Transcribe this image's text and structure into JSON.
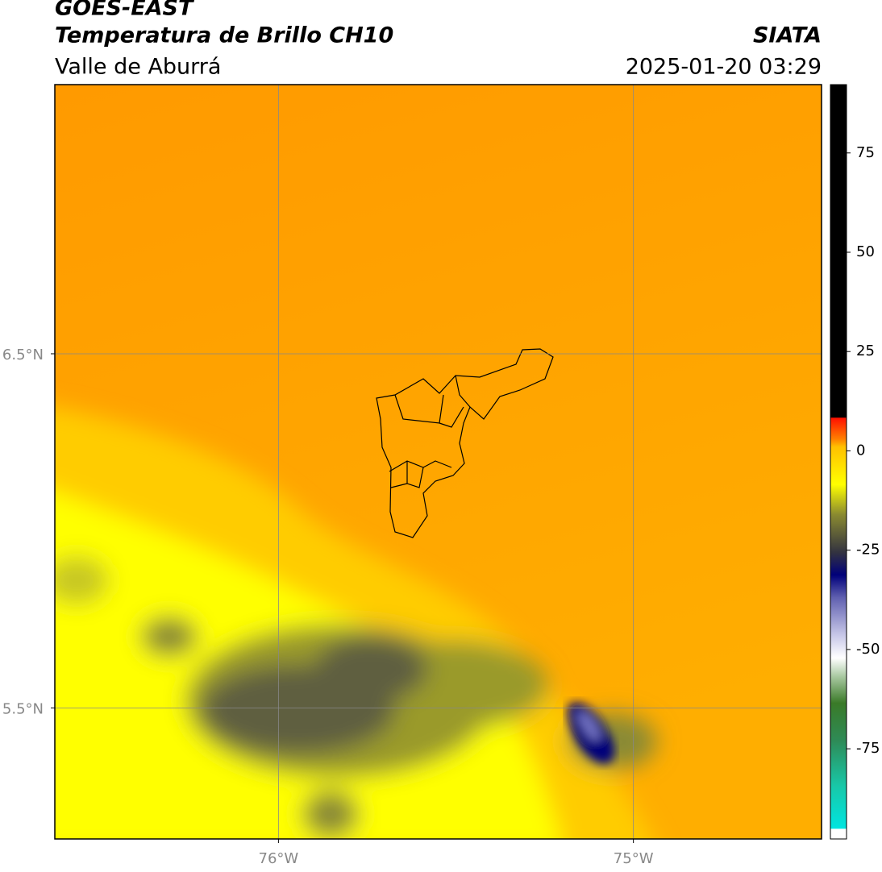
{
  "header": {
    "title": "GOES-EAST",
    "subtitle": "Temperatura de Brillo CH10",
    "region": "Valle de Aburrá",
    "source": "SIATA",
    "datetime": "2025-01-20 03:29"
  },
  "map": {
    "lonlim": [
      -76.63,
      -74.47
    ],
    "latlim": [
      5.13,
      7.26
    ],
    "lat_ticks": [
      {
        "value": 6.5,
        "label": "6.5°N"
      },
      {
        "value": 5.5,
        "label": "5.5°N"
      }
    ],
    "lon_ticks": [
      {
        "value": -76,
        "label": "76°W"
      },
      {
        "value": -75,
        "label": "75°W"
      }
    ]
  },
  "colorbar": {
    "lim": [
      -97.7,
      92.2
    ],
    "ticks": [
      75,
      50,
      25,
      0,
      -25,
      -50,
      -75
    ]
  }
}
